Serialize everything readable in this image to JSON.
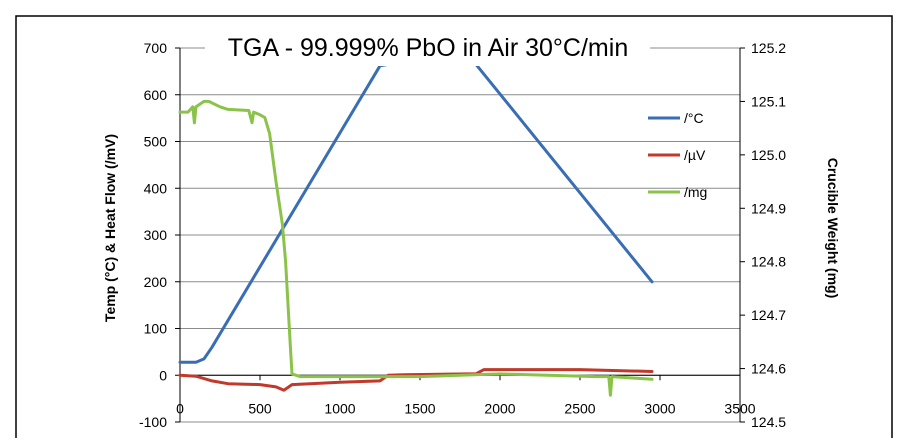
{
  "chart_data": {
    "type": "line",
    "title": "TGA -  99.999% PbO in Air 30°C/min",
    "ylabel": "Temp (°C) & Heat Flow (/mV)",
    "y2label": "Crucible Weight (mg)",
    "xlim": [
      0,
      3500
    ],
    "ylim": [
      -100,
      700
    ],
    "y2lim": [
      124.5,
      125.2
    ],
    "xticks": [
      "0",
      "500",
      "1000",
      "1500",
      "2000",
      "2500",
      "3000",
      "3500"
    ],
    "yticks": [
      "-100",
      "0",
      "100",
      "200",
      "300",
      "400",
      "500",
      "600",
      "700"
    ],
    "y2ticks": [
      "124.5",
      "124.6",
      "124.7",
      "124.8",
      "124.9",
      "125.0",
      "125.1",
      "125.2"
    ],
    "grid": "horizontal",
    "legend_position": "right",
    "series": [
      {
        "name": "/°C",
        "axis": "left",
        "color": "#3a6eb4",
        "points": [
          [
            0,
            28
          ],
          [
            100,
            28
          ],
          [
            150,
            35
          ],
          [
            200,
            60
          ],
          [
            1250,
            662
          ],
          [
            1300,
            665
          ],
          [
            1850,
            665
          ],
          [
            2950,
            200
          ]
        ]
      },
      {
        "name": "/µV",
        "axis": "left",
        "color": "#c0392b",
        "points": [
          [
            0,
            0
          ],
          [
            100,
            -2
          ],
          [
            200,
            -12
          ],
          [
            300,
            -18
          ],
          [
            500,
            -20
          ],
          [
            600,
            -25
          ],
          [
            650,
            -32
          ],
          [
            700,
            -20
          ],
          [
            1000,
            -15
          ],
          [
            1250,
            -12
          ],
          [
            1300,
            0
          ],
          [
            1400,
            1
          ],
          [
            1850,
            3
          ],
          [
            1900,
            12
          ],
          [
            2000,
            12
          ],
          [
            2500,
            12
          ],
          [
            2950,
            8
          ]
        ]
      },
      {
        "name": "/mg",
        "axis": "right",
        "color": "#8bc34a",
        "points": [
          [
            0,
            125.08
          ],
          [
            50,
            125.08
          ],
          [
            80,
            125.09
          ],
          [
            90,
            125.06
          ],
          [
            100,
            125.09
          ],
          [
            150,
            125.1
          ],
          [
            180,
            125.1
          ],
          [
            250,
            125.09
          ],
          [
            300,
            125.085
          ],
          [
            430,
            125.083
          ],
          [
            450,
            125.06
          ],
          [
            460,
            125.08
          ],
          [
            500,
            125.075
          ],
          [
            530,
            125.07
          ],
          [
            560,
            125.04
          ],
          [
            600,
            124.95
          ],
          [
            640,
            124.87
          ],
          [
            660,
            124.8
          ],
          [
            690,
            124.64
          ],
          [
            700,
            124.59
          ],
          [
            750,
            124.585
          ],
          [
            1000,
            124.585
          ],
          [
            1500,
            124.585
          ],
          [
            2000,
            124.59
          ],
          [
            2600,
            124.585
          ],
          [
            2680,
            124.585
          ],
          [
            2690,
            124.55
          ],
          [
            2700,
            124.585
          ],
          [
            2950,
            124.58
          ]
        ]
      }
    ]
  }
}
